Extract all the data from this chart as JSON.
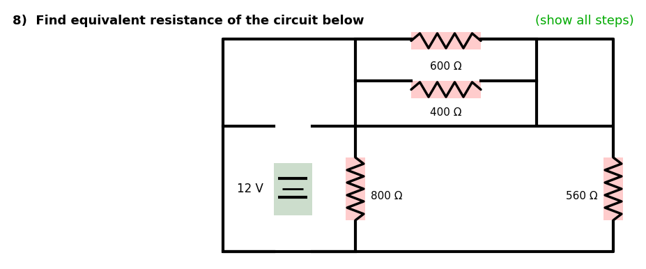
{
  "title": "8)  Find equivalent resistance of the circuit below",
  "subtitle": "(show all steps)",
  "subtitle_color": "#00aa00",
  "title_color": "#000000",
  "battery_label": "12 V",
  "resistors": [
    {
      "label": "600 Ω",
      "value": 600,
      "orientation": "horizontal",
      "position": "top_inner"
    },
    {
      "label": "400 Ω",
      "value": 400,
      "orientation": "horizontal",
      "position": "mid_inner"
    },
    {
      "label": "800 Ω",
      "value": 800,
      "orientation": "vertical",
      "position": "left_branch"
    },
    {
      "label": "560 Ω",
      "value": 560,
      "orientation": "vertical",
      "position": "right_branch"
    }
  ],
  "resistor_fill": "#ffcccc",
  "battery_fill": "#ccddcc",
  "line_color": "#000000",
  "line_width": 3.0,
  "bg_color": "#ffffff"
}
